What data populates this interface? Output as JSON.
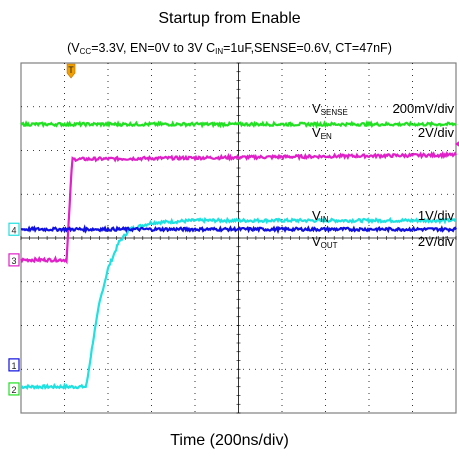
{
  "title": "Startup from Enable",
  "subtitle": {
    "p1": "(V",
    "s1": "CC",
    "p2": "=3.3V, EN=0V to 3V C",
    "s2": "IN",
    "p3": "=1uF,SENSE=0.6V, CT=47nF)"
  },
  "xlabel": "Time (200ns/div)",
  "colors": {
    "vsense": "#22e022",
    "ven": "#e020c8",
    "vin": "#1010e0",
    "vout": "#20e0e0",
    "grid": "#000000",
    "frame": "#808080"
  },
  "chart_data": {
    "type": "line",
    "title": "Startup from Enable",
    "xlabel": "Time (200ns/div)",
    "grid": true,
    "x_divisions": 10,
    "y_divisions": 8,
    "x_range_ns": [
      0,
      2000
    ],
    "channel_markers": [
      "3",
      "4",
      "1",
      "2"
    ],
    "trigger_marker": "T",
    "series": [
      {
        "name": "VSENSE",
        "label_main": "V",
        "label_sub": "SENSE",
        "scale": "200mV/div",
        "color_key": "vsense",
        "points": [
          [
            0,
            6.6
          ],
          [
            2000,
            6.6
          ]
        ]
      },
      {
        "name": "VEN",
        "label_main": "V",
        "label_sub": "EN",
        "scale": "2V/div",
        "color_key": "ven",
        "points": [
          [
            0,
            3.5
          ],
          [
            210,
            3.5
          ],
          [
            235,
            5.8
          ],
          [
            2000,
            5.9
          ]
        ]
      },
      {
        "name": "VIN",
        "label_main": "V",
        "label_sub": "IN",
        "scale": "1V/div",
        "color_key": "vin",
        "points": [
          [
            0,
            4.2
          ],
          [
            2000,
            4.2
          ]
        ]
      },
      {
        "name": "VOUT",
        "label_main": "V",
        "label_sub": "OUT",
        "scale": "2V/div",
        "color_key": "vout",
        "points": [
          [
            0,
            0.6
          ],
          [
            300,
            0.6
          ],
          [
            330,
            1.6
          ],
          [
            360,
            2.5
          ],
          [
            400,
            3.3
          ],
          [
            450,
            3.9
          ],
          [
            500,
            4.2
          ],
          [
            600,
            4.35
          ],
          [
            800,
            4.4
          ],
          [
            2000,
            4.4
          ]
        ]
      }
    ]
  }
}
